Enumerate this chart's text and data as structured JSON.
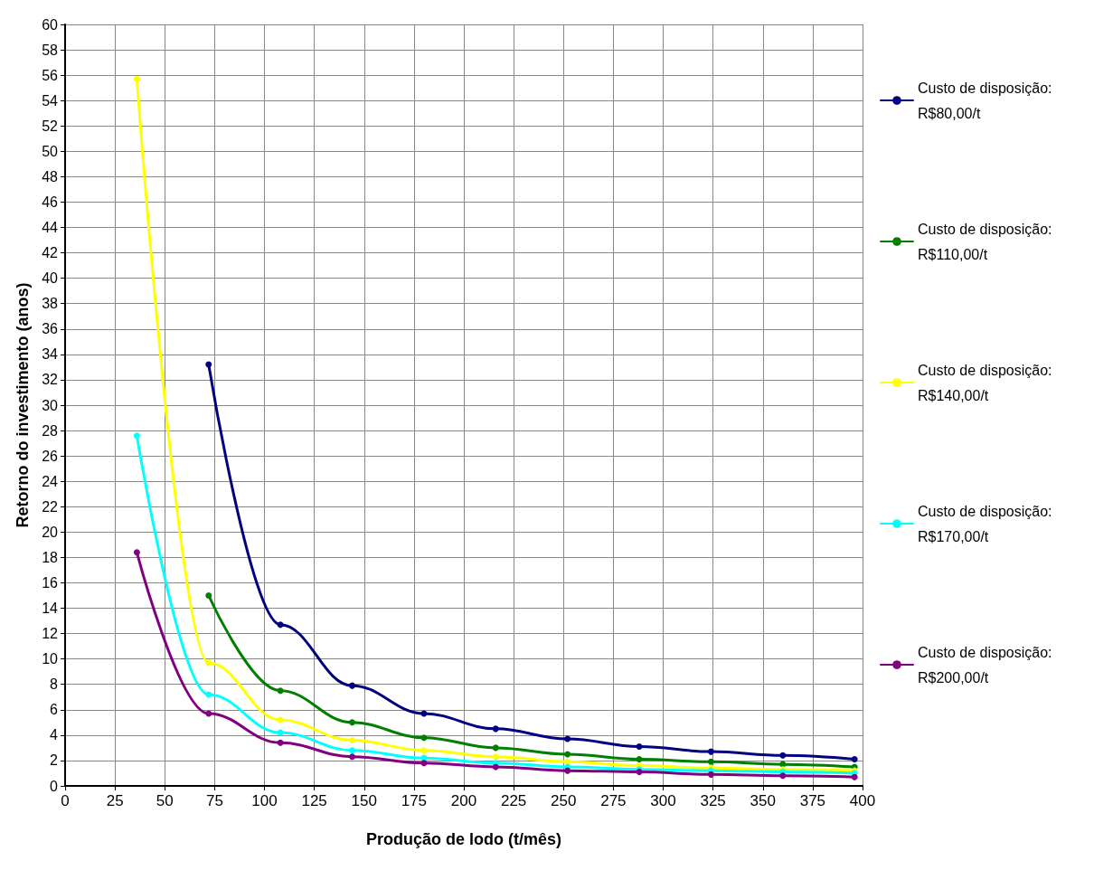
{
  "chart_data": {
    "type": "line",
    "xlabel": "Produção de lodo (t/mês)",
    "ylabel": "Retorno do investimento (anos)",
    "xlim": [
      0,
      400
    ],
    "xticks": [
      0,
      25,
      50,
      75,
      100,
      125,
      150,
      175,
      200,
      225,
      250,
      275,
      300,
      325,
      350,
      375,
      400
    ],
    "ylim": [
      0,
      60
    ],
    "yticks": [
      0,
      2,
      4,
      6,
      8,
      10,
      12,
      14,
      16,
      18,
      20,
      22,
      24,
      26,
      28,
      30,
      32,
      34,
      36,
      38,
      40,
      42,
      44,
      46,
      48,
      50,
      52,
      54,
      56,
      58,
      60
    ],
    "grid": true,
    "legend": "right",
    "marker": "circle",
    "line_style": "solid",
    "series": [
      {
        "name": "Custo de disposição: R$80,00/t",
        "color": "#000080",
        "x": [
          72,
          108,
          144,
          180,
          216,
          252,
          288,
          324,
          360,
          396
        ],
        "values": [
          33.2,
          12.7,
          7.9,
          5.7,
          4.5,
          3.7,
          3.1,
          2.7,
          2.4,
          2.1
        ]
      },
      {
        "name": "Custo de disposição: R$110,00/t",
        "color": "#008000",
        "x": [
          72,
          108,
          144,
          180,
          216,
          252,
          288,
          324,
          360,
          396
        ],
        "values": [
          15,
          7.5,
          5.0,
          3.8,
          3.0,
          2.5,
          2.1,
          1.9,
          1.7,
          1.5
        ]
      },
      {
        "name": "Custo de disposição: R$140,00/t",
        "color": "#ffff00",
        "x": [
          36,
          72,
          108,
          144,
          180,
          216,
          252,
          288,
          324,
          360,
          396
        ],
        "values": [
          55.7,
          9.7,
          5.2,
          3.6,
          2.8,
          2.3,
          1.9,
          1.6,
          1.4,
          1.3,
          1.2
        ]
      },
      {
        "name": "Custo de disposição: R$170,00/t",
        "color": "#00ffff",
        "x": [
          36,
          72,
          108,
          144,
          180,
          216,
          252,
          288,
          324,
          360,
          396
        ],
        "values": [
          27.6,
          7.2,
          4.2,
          2.8,
          2.2,
          1.8,
          1.5,
          1.3,
          1.2,
          1.1,
          1.0
        ]
      },
      {
        "name": "Custo de disposição: R$200,00/t",
        "color": "#800080",
        "x": [
          36,
          72,
          108,
          144,
          180,
          216,
          252,
          288,
          324,
          360,
          396
        ],
        "values": [
          18.4,
          5.7,
          3.4,
          2.3,
          1.8,
          1.5,
          1.2,
          1.1,
          0.9,
          0.8,
          0.7
        ]
      }
    ]
  }
}
